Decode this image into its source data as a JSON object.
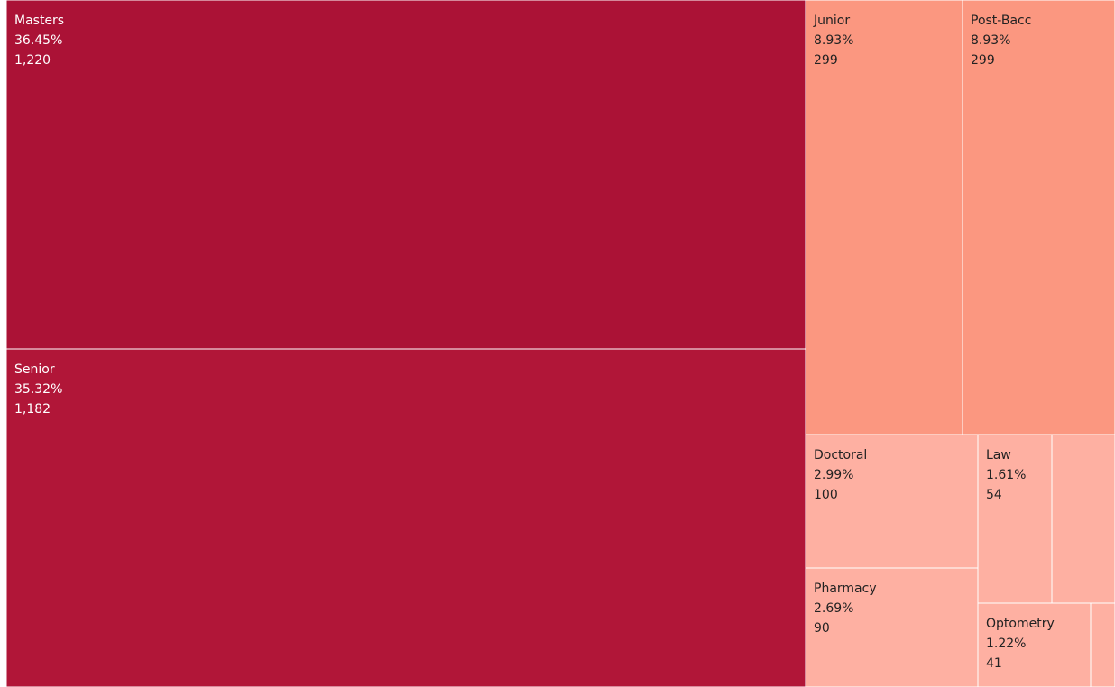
{
  "chart_data": {
    "type": "treemap",
    "colors": {
      "masters": "#AB1236",
      "senior": "#B11638",
      "junior": "#FB9780",
      "post_bacc": "#FB9780",
      "small_tiles": "#FEB0A2",
      "border": "#FFFFFF",
      "dark_text": "#FFFFFF",
      "light_text": "#222222"
    },
    "tiles": [
      {
        "key": "masters",
        "label": "Masters",
        "percent": "36.45%",
        "count": "1,220",
        "value": 1220
      },
      {
        "key": "senior",
        "label": "Senior",
        "percent": "35.32%",
        "count": "1,182",
        "value": 1182
      },
      {
        "key": "junior",
        "label": "Junior",
        "percent": "8.93%",
        "count": "299",
        "value": 299
      },
      {
        "key": "post_bacc",
        "label": "Post-Bacc",
        "percent": "8.93%",
        "count": "299",
        "value": 299
      },
      {
        "key": "doctoral",
        "label": "Doctoral",
        "percent": "2.99%",
        "count": "100",
        "value": 100
      },
      {
        "key": "pharmacy",
        "label": "Pharmacy",
        "percent": "2.69%",
        "count": "90",
        "value": 90
      },
      {
        "key": "law",
        "label": "Law",
        "percent": "1.61%",
        "count": "54",
        "value": 54
      },
      {
        "key": "optometry",
        "label": "Optometry",
        "percent": "1.22%",
        "count": "41",
        "value": 41
      },
      {
        "key": "unlabeled_a",
        "label": "",
        "percent": "",
        "count": ""
      },
      {
        "key": "unlabeled_b",
        "label": "",
        "percent": "",
        "count": ""
      }
    ]
  }
}
